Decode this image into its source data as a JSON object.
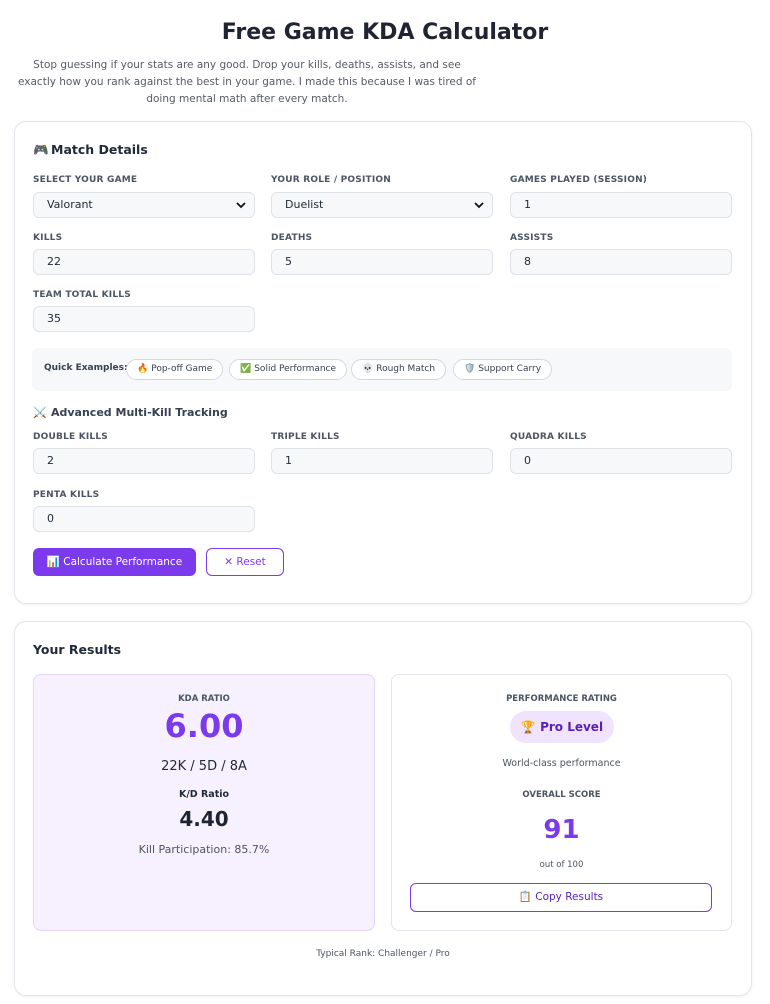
{
  "header": {
    "title": "Free Game KDA Calculator",
    "subtitle": "Stop guessing if your stats are any good. Drop your kills, deaths, assists, and see exactly how you rank against the best in your game. I made this because I was tired of doing mental math after every match."
  },
  "match": {
    "section_icon": "🎮",
    "section_title": "Match Details",
    "game": {
      "label": "SELECT YOUR GAME",
      "value": "Valorant"
    },
    "role": {
      "label": "YOUR ROLE / POSITION",
      "value": "Duelist"
    },
    "games_played": {
      "label": "GAMES PLAYED (SESSION)",
      "value": "1"
    },
    "kills": {
      "label": "KILLS",
      "value": "22"
    },
    "deaths": {
      "label": "DEATHS",
      "value": "5"
    },
    "assists": {
      "label": "ASSISTS",
      "value": "8"
    },
    "team_kills": {
      "label": "TEAM TOTAL KILLS",
      "value": "35"
    }
  },
  "quick_examples": {
    "label": "Quick Examples:",
    "items": [
      {
        "icon": "🔥",
        "label": "Pop-off Game"
      },
      {
        "icon": "✅",
        "label": "Solid Performance"
      },
      {
        "icon": "💀",
        "label": "Rough Match"
      },
      {
        "icon": "🛡️",
        "label": "Support Carry"
      }
    ]
  },
  "multikill": {
    "section_icon": "⚔️",
    "section_title": "Advanced Multi-Kill Tracking",
    "double": {
      "label": "DOUBLE KILLS",
      "value": "2"
    },
    "triple": {
      "label": "TRIPLE KILLS",
      "value": "1"
    },
    "quadra": {
      "label": "QUADRA KILLS",
      "value": "0"
    },
    "penta": {
      "label": "PENTA KILLS",
      "value": "0"
    }
  },
  "actions": {
    "calculate_icon": "📊",
    "calculate_label": "Calculate Performance",
    "reset_icon": "✕",
    "reset_label": "Reset"
  },
  "results": {
    "title": "Your Results",
    "kda_label": "KDA RATIO",
    "kda_value": "6.00",
    "kda_line": "22K / 5D / 8A",
    "kd_label": "K/D Ratio",
    "kd_value": "4.40",
    "kill_participation": "Kill Participation: 85.7%",
    "rating_label": "PERFORMANCE RATING",
    "rating_icon": "🏆",
    "rating_value": "Pro Level",
    "rating_desc": "World-class performance",
    "score_label": "OVERALL SCORE",
    "score_value": "91",
    "score_suffix": "out of 100",
    "copy_icon": "📋",
    "copy_label": "Copy Results",
    "typical_rank": "Typical Rank: Challenger / Pro"
  },
  "colors": {
    "accent": "#7c3aed",
    "accent_dark": "#5b21b6",
    "panel_tint": "#f7f1ff"
  }
}
